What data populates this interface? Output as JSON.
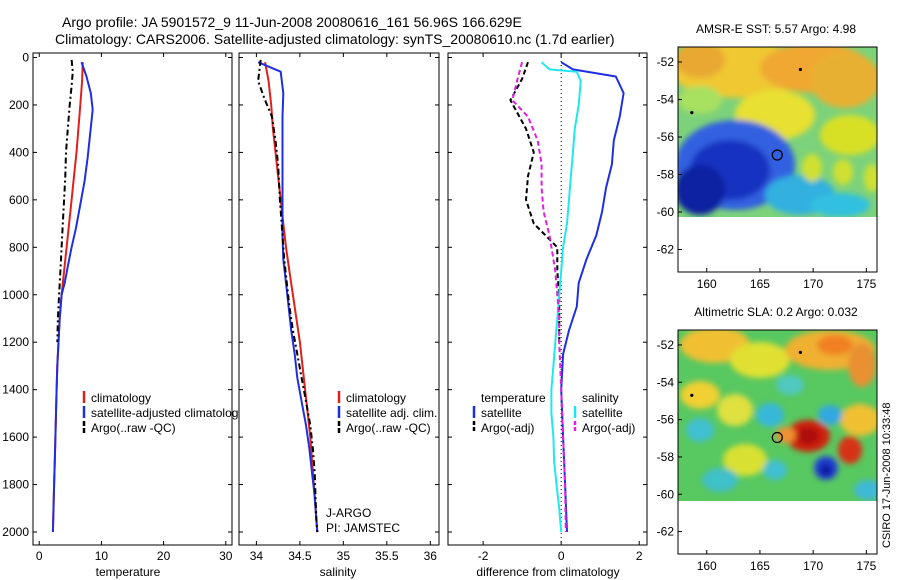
{
  "header": {
    "line1": "Argo profile: JA 5901572_9 11-Jun-2008 20080616_161 56.96S 166.629E",
    "line2": "Climatology: CARS2006. Satellite-adjusted climatology: synTS_20080610.nc (1.7d earlier)"
  },
  "footer_stamp": "CSIRO 17-Jun-2008 10:33:48",
  "colors": {
    "climatology": "#e0201b",
    "satellite": "#1f2fe0",
    "argo": "#000000",
    "salinity_sat": "#22e6ee",
    "salinity_argo": "#e020e0",
    "axis": "#000000"
  },
  "chart_data": [
    {
      "id": "temperature",
      "type": "line",
      "xlabel": "temperature",
      "xlim": [
        -1,
        31
      ],
      "ylim": [
        0,
        2050
      ],
      "xticks": [
        0,
        10,
        20,
        30
      ],
      "yticks": [
        0,
        200,
        400,
        600,
        800,
        1000,
        1200,
        1400,
        1600,
        1800,
        2000
      ],
      "legend": [
        "climatology",
        "satellite-adjusted climatology",
        "Argo(..raw -QC)"
      ],
      "series": [
        {
          "name": "climatology",
          "color_key": "climatology",
          "dash": "",
          "points": [
            [
              7.0,
              20
            ],
            [
              6.9,
              100
            ],
            [
              6.6,
              200
            ],
            [
              6.3,
              300
            ],
            [
              6.0,
              400
            ],
            [
              5.6,
              500
            ],
            [
              5.2,
              600
            ],
            [
              4.8,
              700
            ],
            [
              4.4,
              800
            ],
            [
              4.0,
              900
            ],
            [
              3.6,
              1000
            ],
            [
              3.3,
              1100
            ],
            [
              3.1,
              1200
            ],
            [
              2.9,
              1300
            ],
            [
              2.8,
              1400
            ],
            [
              2.7,
              1500
            ],
            [
              2.6,
              1600
            ],
            [
              2.5,
              1700
            ],
            [
              2.4,
              1800
            ],
            [
              2.3,
              1900
            ],
            [
              2.2,
              2000
            ]
          ]
        },
        {
          "name": "satellite-adjusted climatology",
          "color_key": "satellite",
          "dash": "",
          "points": [
            [
              6.8,
              20
            ],
            [
              7.6,
              80
            ],
            [
              8.3,
              150
            ],
            [
              8.6,
              220
            ],
            [
              8.2,
              320
            ],
            [
              7.8,
              420
            ],
            [
              7.3,
              520
            ],
            [
              6.6,
              620
            ],
            [
              5.9,
              720
            ],
            [
              5.2,
              800
            ],
            [
              4.6,
              880
            ],
            [
              4.1,
              950
            ],
            [
              3.6,
              1000
            ],
            [
              3.3,
              1100
            ],
            [
              3.1,
              1200
            ],
            [
              2.9,
              1300
            ],
            [
              2.8,
              1400
            ],
            [
              2.7,
              1500
            ],
            [
              2.6,
              1600
            ],
            [
              2.5,
              1700
            ],
            [
              2.4,
              1800
            ],
            [
              2.3,
              1900
            ],
            [
              2.2,
              2000
            ]
          ]
        },
        {
          "name": "Argo(..raw -QC)",
          "color_key": "argo",
          "dash": "6,3,2,3",
          "points": [
            [
              5.2,
              10
            ],
            [
              5.4,
              60
            ],
            [
              5.2,
              120
            ],
            [
              4.9,
              200
            ],
            [
              4.6,
              300
            ],
            [
              4.3,
              400
            ],
            [
              4.2,
              500
            ],
            [
              4.0,
              600
            ],
            [
              3.8,
              700
            ],
            [
              3.6,
              800
            ],
            [
              3.4,
              900
            ],
            [
              3.2,
              1000
            ],
            [
              3.0,
              1100
            ],
            [
              2.9,
              1200
            ]
          ]
        }
      ]
    },
    {
      "id": "salinity",
      "type": "line",
      "xlabel": "salinity",
      "xlim": [
        33.8,
        36.1
      ],
      "ylim": [
        0,
        2050
      ],
      "xticks": [
        34,
        34.5,
        35,
        35.5,
        36
      ],
      "legend": [
        "climatology",
        "satellite adj. clim.",
        "Argo(..raw -QC)"
      ],
      "annotations": [
        "J-ARGO",
        "PI: JAMSTEC"
      ],
      "series": [
        {
          "name": "climatology",
          "color_key": "climatology",
          "dash": "",
          "points": [
            [
              34.1,
              20
            ],
            [
              34.14,
              100
            ],
            [
              34.17,
              200
            ],
            [
              34.19,
              300
            ],
            [
              34.22,
              400
            ],
            [
              34.25,
              500
            ],
            [
              34.28,
              600
            ],
            [
              34.31,
              700
            ],
            [
              34.34,
              800
            ],
            [
              34.38,
              900
            ],
            [
              34.42,
              1000
            ],
            [
              34.46,
              1100
            ],
            [
              34.5,
              1200
            ],
            [
              34.53,
              1300
            ],
            [
              34.56,
              1400
            ],
            [
              34.59,
              1500
            ],
            [
              34.62,
              1600
            ],
            [
              34.64,
              1700
            ],
            [
              34.66,
              1800
            ],
            [
              34.68,
              1900
            ],
            [
              34.7,
              2000
            ]
          ]
        },
        {
          "name": "satellite adj. clim.",
          "color_key": "satellite",
          "dash": "",
          "points": [
            [
              34.02,
              20
            ],
            [
              34.28,
              60
            ],
            [
              34.31,
              150
            ],
            [
              34.3,
              250
            ],
            [
              34.3,
              350
            ],
            [
              34.3,
              450
            ],
            [
              34.3,
              550
            ],
            [
              34.3,
              650
            ],
            [
              34.3,
              750
            ],
            [
              34.31,
              850
            ],
            [
              34.34,
              950
            ],
            [
              34.37,
              1050
            ],
            [
              34.4,
              1150
            ],
            [
              34.44,
              1250
            ],
            [
              34.47,
              1350
            ],
            [
              34.52,
              1450
            ],
            [
              34.57,
              1550
            ],
            [
              34.61,
              1650
            ],
            [
              34.64,
              1750
            ],
            [
              34.67,
              1850
            ],
            [
              34.69,
              1950
            ],
            [
              34.7,
              2000
            ]
          ]
        },
        {
          "name": "Argo(..raw -QC)",
          "color_key": "argo",
          "dash": "6,3,2,3",
          "points": [
            [
              34.05,
              10
            ],
            [
              34.02,
              100
            ],
            [
              34.1,
              180
            ],
            [
              34.18,
              250
            ],
            [
              34.22,
              350
            ],
            [
              34.25,
              450
            ],
            [
              34.27,
              600
            ],
            [
              34.3,
              750
            ],
            [
              34.32,
              850
            ],
            [
              34.35,
              950
            ],
            [
              34.38,
              1050
            ],
            [
              34.42,
              1150
            ],
            [
              34.47,
              1250
            ],
            [
              34.52,
              1350
            ],
            [
              34.57,
              1450
            ],
            [
              34.62,
              1550
            ],
            [
              34.65,
              1650
            ],
            [
              34.67,
              1750
            ],
            [
              34.68,
              1850
            ],
            [
              34.69,
              1950
            ],
            [
              34.7,
              2000
            ]
          ]
        }
      ]
    },
    {
      "id": "difference",
      "type": "line",
      "xlabel": "difference from climatology",
      "xlim": [
        -2.9,
        2.2
      ],
      "ylim": [
        0,
        2050
      ],
      "xticks": [
        -2,
        0,
        2
      ],
      "zero_line": 0,
      "legend_groups": [
        {
          "title": "temperature",
          "items": [
            "satellite",
            "Argo(-adj)"
          ]
        },
        {
          "title": "salinity",
          "items": [
            "satellite",
            "Argo(-adj)"
          ]
        }
      ],
      "series": [
        {
          "name": "temperature satellite",
          "color_key": "satellite",
          "dash": "",
          "points": [
            [
              0.0,
              20
            ],
            [
              0.3,
              50
            ],
            [
              1.4,
              80
            ],
            [
              1.6,
              150
            ],
            [
              1.5,
              250
            ],
            [
              1.35,
              350
            ],
            [
              1.3,
              450
            ],
            [
              1.15,
              550
            ],
            [
              1.05,
              650
            ],
            [
              0.9,
              750
            ],
            [
              0.65,
              850
            ],
            [
              0.45,
              950
            ],
            [
              0.4,
              1050
            ],
            [
              0.2,
              1150
            ],
            [
              0.05,
              1250
            ],
            [
              0.0,
              1400
            ],
            [
              0.05,
              1600
            ],
            [
              0.1,
              1800
            ],
            [
              0.15,
              2000
            ]
          ]
        },
        {
          "name": "temperature Argo(-adj)",
          "color_key": "argo",
          "dash": "5,3",
          "points": [
            [
              -0.85,
              20
            ],
            [
              -1.0,
              90
            ],
            [
              -1.3,
              180
            ],
            [
              -0.9,
              300
            ],
            [
              -0.7,
              400
            ],
            [
              -0.85,
              500
            ],
            [
              -0.9,
              600
            ],
            [
              -0.7,
              700
            ],
            [
              -0.1,
              800
            ],
            [
              -0.1,
              900
            ],
            [
              -0.05,
              1000
            ],
            [
              -0.05,
              1100
            ],
            [
              -0.05,
              1200
            ]
          ]
        },
        {
          "name": "salinity satellite",
          "color_key": "salinity_sat",
          "dash": "",
          "points": [
            [
              -0.5,
              20
            ],
            [
              -0.3,
              50
            ],
            [
              0.4,
              60
            ],
            [
              0.5,
              100
            ],
            [
              0.45,
              200
            ],
            [
              0.35,
              300
            ],
            [
              0.3,
              400
            ],
            [
              0.25,
              500
            ],
            [
              0.2,
              600
            ],
            [
              0.15,
              700
            ],
            [
              0.05,
              800
            ],
            [
              0.0,
              900
            ],
            [
              -0.05,
              1000
            ],
            [
              -0.1,
              1100
            ],
            [
              -0.15,
              1200
            ],
            [
              -0.2,
              1300
            ],
            [
              -0.25,
              1400
            ],
            [
              -0.25,
              1500
            ],
            [
              -0.2,
              1600
            ],
            [
              -0.18,
              1700
            ],
            [
              -0.12,
              1800
            ],
            [
              -0.05,
              1900
            ],
            [
              0.0,
              2000
            ]
          ]
        },
        {
          "name": "salinity Argo(-adj)",
          "color_key": "salinity_argo",
          "dash": "5,3",
          "points": [
            [
              -1.0,
              20
            ],
            [
              -1.1,
              80
            ],
            [
              -1.25,
              180
            ],
            [
              -0.85,
              250
            ],
            [
              -0.6,
              350
            ],
            [
              -0.5,
              450
            ],
            [
              -0.5,
              550
            ],
            [
              -0.45,
              650
            ],
            [
              -0.3,
              750
            ],
            [
              -0.15,
              900
            ],
            [
              -0.1,
              1000
            ],
            [
              -0.05,
              1100
            ],
            [
              -0.05,
              1200
            ],
            [
              0.0,
              1400
            ],
            [
              0.05,
              1600
            ],
            [
              0.1,
              1800
            ],
            [
              0.12,
              2000
            ]
          ]
        }
      ]
    },
    {
      "id": "sst_map",
      "type": "heatmap",
      "title": "AMSR-E SST: 5.57 Argo: 4.98",
      "xlim": [
        157.3,
        176
      ],
      "ylim": [
        -63.2,
        -51.2
      ],
      "xticks": [
        160,
        165,
        170,
        175
      ],
      "yticks": [
        -52,
        -54,
        -56,
        -58,
        -60,
        -62
      ],
      "data_ylim": [
        -60.1,
        -51.2
      ],
      "marker": {
        "lon": 166.629,
        "lat": -56.96
      },
      "points": [
        {
          "lon": 168.8,
          "lat": -52.4
        },
        {
          "lon": 158.6,
          "lat": -54.7
        }
      ]
    },
    {
      "id": "sla_map",
      "type": "heatmap",
      "title": "Altimetric SLA: 0.2 Argo: 0.032",
      "xlim": [
        157.3,
        176
      ],
      "ylim": [
        -63.2,
        -51.2
      ],
      "xticks": [
        160,
        165,
        170,
        175
      ],
      "yticks": [
        -52,
        -54,
        -56,
        -58,
        -60,
        -62
      ],
      "data_ylim": [
        -60.1,
        -51.2
      ],
      "marker": {
        "lon": 166.629,
        "lat": -56.96
      },
      "points": [
        {
          "lon": 168.8,
          "lat": -52.4
        },
        {
          "lon": 158.6,
          "lat": -54.7
        }
      ]
    }
  ]
}
